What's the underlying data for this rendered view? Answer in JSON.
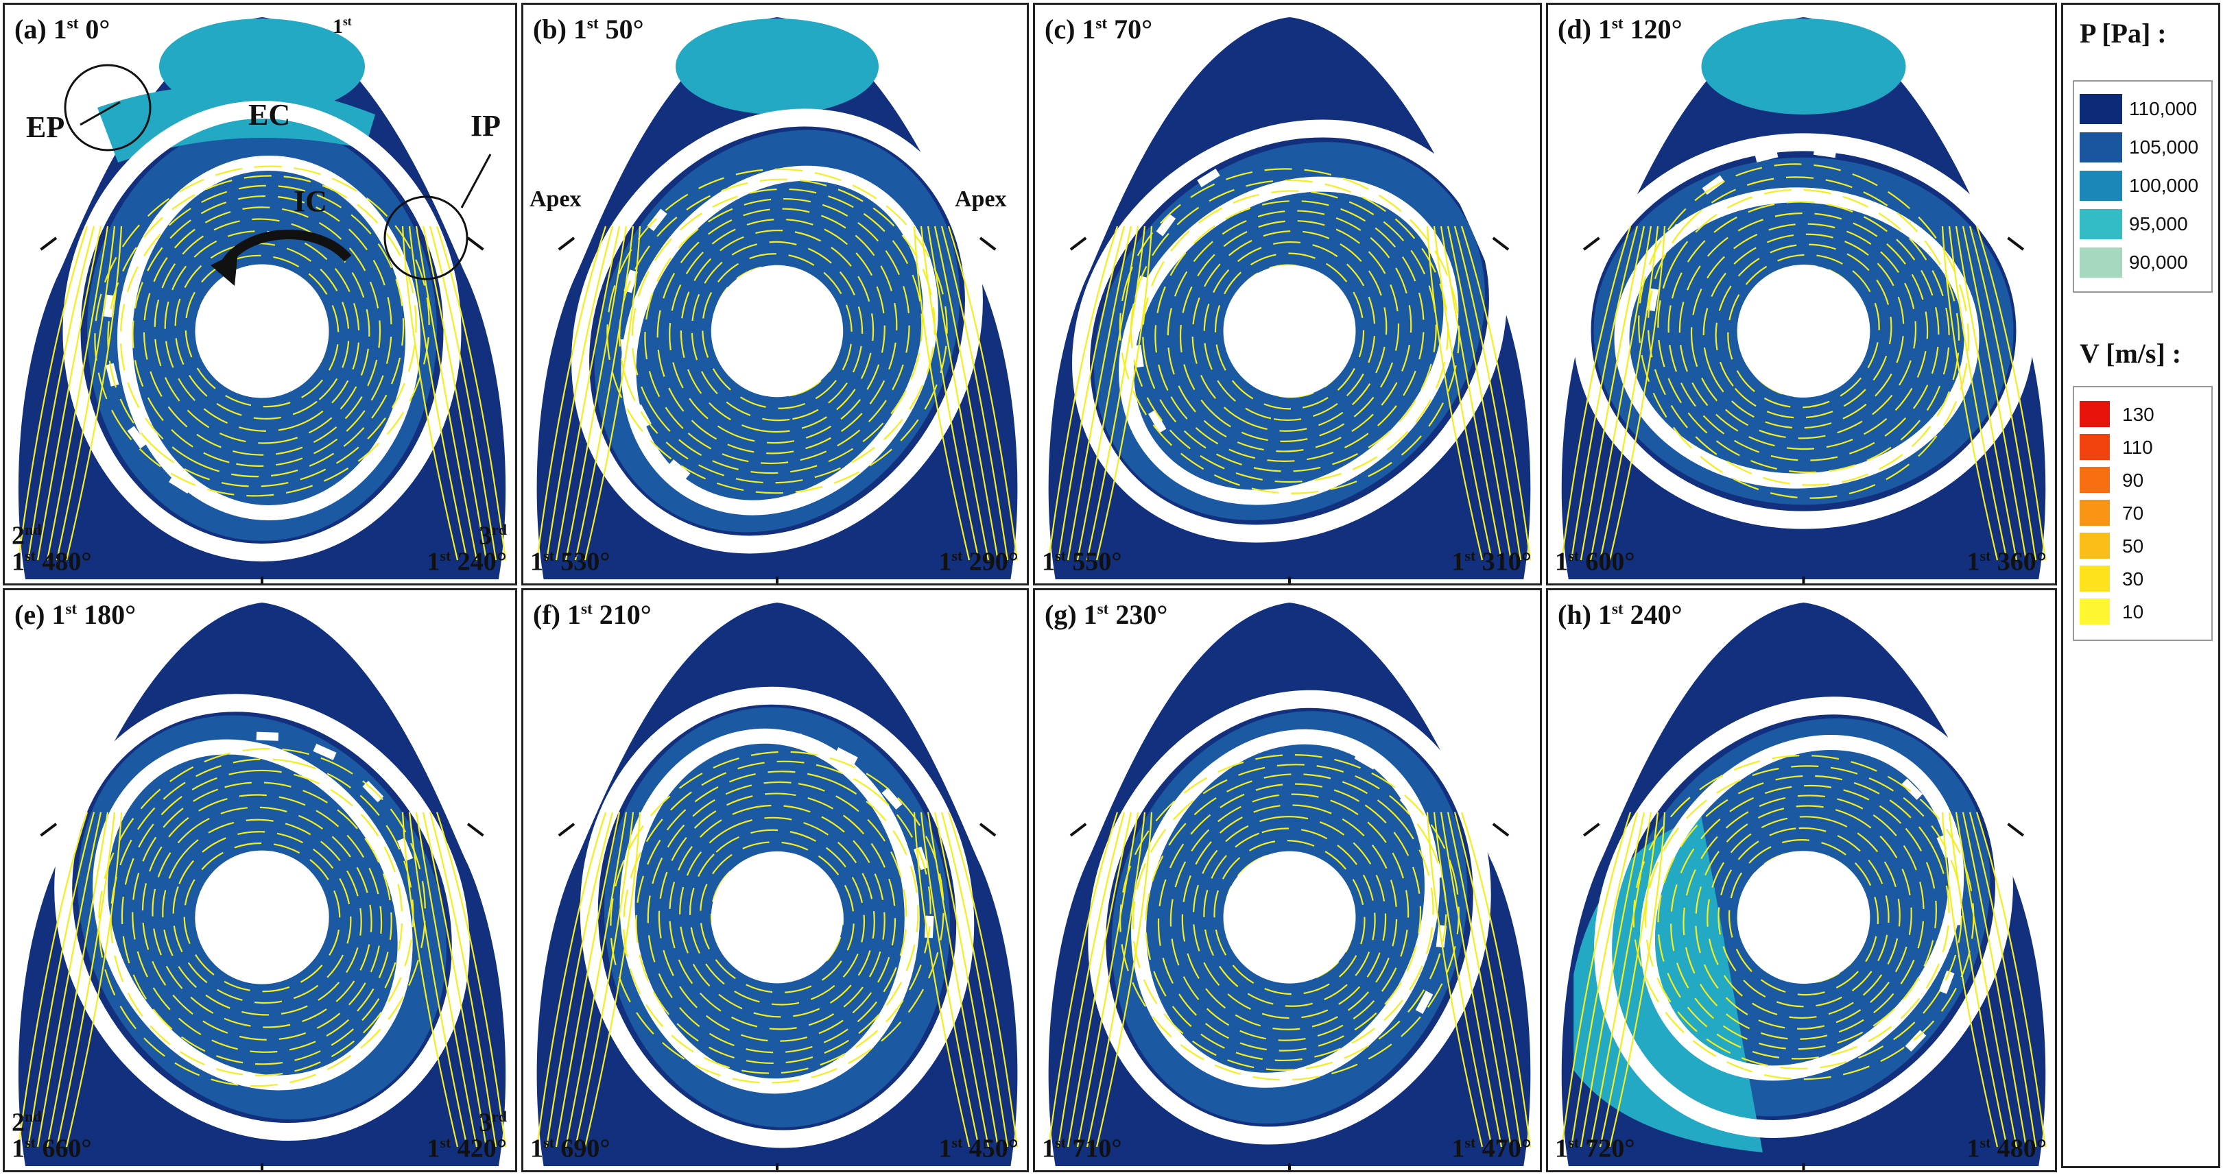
{
  "panels": [
    {
      "id": "a",
      "label": "(a) 1",
      "label_sup": "st",
      "label_rest": " 0°",
      "bl_top_num": "2",
      "bl_top_sup": "nd",
      "bl_num": "1",
      "bl_sup": "st",
      "bl_rest": " 480°",
      "br_top_num": "3",
      "br_top_sup": "rd",
      "br_num": "1",
      "br_sup": "st",
      "br_rest": " 240°",
      "top_num": "1",
      "top_sup": "st"
    },
    {
      "id": "b",
      "label": "(b) 1",
      "label_sup": "st",
      "label_rest": " 50°",
      "bl_num": "1",
      "bl_sup": "st",
      "bl_rest": " 530°",
      "br_num": "1",
      "br_sup": "st",
      "br_rest": " 290°"
    },
    {
      "id": "c",
      "label": "(c) 1",
      "label_sup": "st",
      "label_rest": " 70°",
      "bl_num": "1",
      "bl_sup": "st",
      "bl_rest": " 550°",
      "br_num": "1",
      "br_sup": "st",
      "br_rest": " 310°"
    },
    {
      "id": "d",
      "label": "(d) 1",
      "label_sup": "st",
      "label_rest": " 120°",
      "bl_num": "1",
      "bl_sup": "st",
      "bl_rest": " 600°",
      "br_num": "1",
      "br_sup": "st",
      "br_rest": " 360°"
    },
    {
      "id": "e",
      "label": "(e) 1",
      "label_sup": "st",
      "label_rest": " 180°",
      "bl_top_num": "2",
      "bl_top_sup": "nd",
      "bl_num": "1",
      "bl_sup": "st",
      "bl_rest": " 660°",
      "br_top_num": "3",
      "br_top_sup": "rd",
      "br_num": "1",
      "br_sup": "st",
      "br_rest": " 420°"
    },
    {
      "id": "f",
      "label": "(f) 1",
      "label_sup": "st",
      "label_rest": " 210°",
      "bl_num": "1",
      "bl_sup": "st",
      "bl_rest": " 690°",
      "br_num": "1",
      "br_sup": "st",
      "br_rest": " 450°"
    },
    {
      "id": "g",
      "label": "(g) 1",
      "label_sup": "st",
      "label_rest": " 230°",
      "bl_num": "1",
      "bl_sup": "st",
      "bl_rest": " 710°",
      "br_num": "1",
      "br_sup": "st",
      "br_rest": " 470°"
    },
    {
      "id": "h",
      "label": "(h) 1",
      "label_sup": "st",
      "label_rest": " 240°",
      "bl_num": "1",
      "bl_sup": "st",
      "bl_rest": " 720°",
      "br_num": "1",
      "br_sup": "st",
      "br_rest": " 480°"
    }
  ],
  "annotations": {
    "ep": "EP",
    "ec": "EC",
    "ip": "IP",
    "ic": "IC",
    "apex_left": "Apex",
    "apex_right": "Apex"
  },
  "legend": {
    "pressure_title": "P [Pa] :",
    "pressure_levels": [
      {
        "label": "110,000",
        "color": "#0d2a78"
      },
      {
        "label": "105,000",
        "color": "#1a56a0"
      },
      {
        "label": "100,000",
        "color": "#1b86b8"
      },
      {
        "label": "95,000",
        "color": "#33bcc4"
      },
      {
        "label": "90,000",
        "color": "#a6d8bf"
      }
    ],
    "velocity_title": "V [m/s] :",
    "velocity_levels": [
      {
        "label": "130",
        "color": "#e8140c"
      },
      {
        "label": "110",
        "color": "#f2420d"
      },
      {
        "label": "90",
        "color": "#f66e10"
      },
      {
        "label": "70",
        "color": "#f99514"
      },
      {
        "label": "50",
        "color": "#fbbd18"
      },
      {
        "label": "30",
        "color": "#fde21c"
      },
      {
        "label": "10",
        "color": "#fff830"
      }
    ]
  },
  "colors": {
    "housing": "#12307e",
    "chamber": "#1b5aa3",
    "cyan_region": "#23a9c4",
    "light_cyan": "#5dc8cf",
    "streamline": "#f5ee1e",
    "rotor": "#ffffff"
  }
}
